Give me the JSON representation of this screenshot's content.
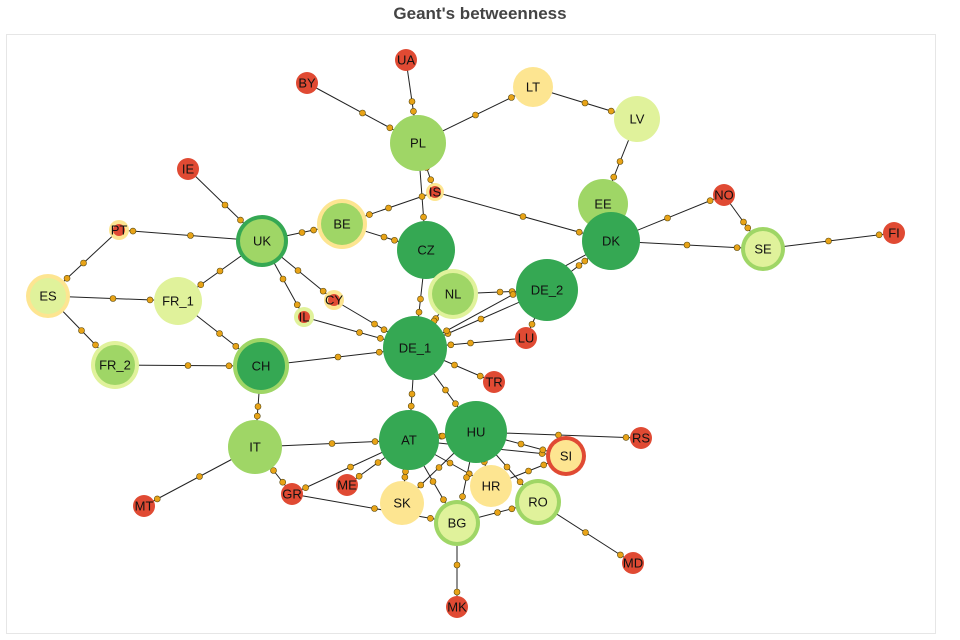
{
  "title": "Geant's betweenness",
  "colors": {
    "edge": "#222222",
    "edge_dot": "#e8a317",
    "red": "#e04a33",
    "yellow": "#fde591",
    "pale": "#e0f29b",
    "light_green": "#9fd666",
    "green": "#35a853"
  },
  "nodes": [
    {
      "id": "UA",
      "label": "UA",
      "fill": "red"
    },
    {
      "id": "BY",
      "label": "BY",
      "fill": "red"
    },
    {
      "id": "LT",
      "label": "LT",
      "fill": "yellow"
    },
    {
      "id": "LV",
      "label": "LV",
      "fill": "pale"
    },
    {
      "id": "PL",
      "label": "PL",
      "fill": "light_green"
    },
    {
      "id": "IE",
      "label": "IE",
      "fill": "red"
    },
    {
      "id": "IS",
      "label": "IS",
      "fill": "red",
      "ring": "yellow"
    },
    {
      "id": "EE",
      "label": "EE",
      "fill": "light_green"
    },
    {
      "id": "NO",
      "label": "NO",
      "fill": "red"
    },
    {
      "id": "FI",
      "label": "FI",
      "fill": "red"
    },
    {
      "id": "PT",
      "label": "PT",
      "fill": "red",
      "ring": "yellow"
    },
    {
      "id": "BE",
      "label": "BE",
      "fill": "light_green",
      "ring": "yellow"
    },
    {
      "id": "UK",
      "label": "UK",
      "fill": "light_green",
      "ring": "green"
    },
    {
      "id": "CZ",
      "label": "CZ",
      "fill": "green"
    },
    {
      "id": "DK",
      "label": "DK",
      "fill": "green"
    },
    {
      "id": "SE",
      "label": "SE",
      "fill": "pale",
      "ring": "light_green"
    },
    {
      "id": "ES",
      "label": "ES",
      "fill": "pale",
      "ring": "yellow"
    },
    {
      "id": "FR_1",
      "label": "FR_1",
      "fill": "pale"
    },
    {
      "id": "CY",
      "label": "CY",
      "fill": "red",
      "ring": "yellow"
    },
    {
      "id": "IL",
      "label": "IL",
      "fill": "red",
      "ring": "pale"
    },
    {
      "id": "NL",
      "label": "NL",
      "fill": "light_green",
      "ring": "pale"
    },
    {
      "id": "DE_2",
      "label": "DE_2",
      "fill": "green"
    },
    {
      "id": "LU",
      "label": "LU",
      "fill": "red"
    },
    {
      "id": "FR_2",
      "label": "FR_2",
      "fill": "light_green",
      "ring": "pale"
    },
    {
      "id": "CH",
      "label": "CH",
      "fill": "green",
      "ring": "light_green"
    },
    {
      "id": "DE_1",
      "label": "DE_1",
      "fill": "green"
    },
    {
      "id": "TR",
      "label": "TR",
      "fill": "red"
    },
    {
      "id": "IT",
      "label": "IT",
      "fill": "light_green"
    },
    {
      "id": "AT",
      "label": "AT",
      "fill": "green"
    },
    {
      "id": "HU",
      "label": "HU",
      "fill": "green"
    },
    {
      "id": "RS",
      "label": "RS",
      "fill": "red"
    },
    {
      "id": "SI",
      "label": "SI",
      "fill": "yellow",
      "ring": "red"
    },
    {
      "id": "MT",
      "label": "MT",
      "fill": "red"
    },
    {
      "id": "GR",
      "label": "GR",
      "fill": "red"
    },
    {
      "id": "ME",
      "label": "ME",
      "fill": "red"
    },
    {
      "id": "SK",
      "label": "SK",
      "fill": "yellow"
    },
    {
      "id": "HR",
      "label": "HR",
      "fill": "yellow"
    },
    {
      "id": "RO",
      "label": "RO",
      "fill": "pale",
      "ring": "light_green"
    },
    {
      "id": "BG",
      "label": "BG",
      "fill": "pale",
      "ring": "light_green"
    },
    {
      "id": "MD",
      "label": "MD",
      "fill": "red"
    },
    {
      "id": "MK",
      "label": "MK",
      "fill": "red"
    }
  ],
  "edges": [
    [
      "UA",
      "PL"
    ],
    [
      "BY",
      "PL"
    ],
    [
      "PL",
      "LT"
    ],
    [
      "LT",
      "LV"
    ],
    [
      "LV",
      "EE"
    ],
    [
      "PL",
      "CZ"
    ],
    [
      "PL",
      "IS"
    ],
    [
      "IS",
      "DK"
    ],
    [
      "IS",
      "BE"
    ],
    [
      "IE",
      "UK"
    ],
    [
      "UK",
      "PT"
    ],
    [
      "PT",
      "ES"
    ],
    [
      "ES",
      "FR_1"
    ],
    [
      "ES",
      "FR_2"
    ],
    [
      "UK",
      "FR_1"
    ],
    [
      "UK",
      "BE"
    ],
    [
      "UK",
      "CY"
    ],
    [
      "UK",
      "IL"
    ],
    [
      "BE",
      "CZ"
    ],
    [
      "FR_1",
      "CH"
    ],
    [
      "FR_2",
      "CH"
    ],
    [
      "CH",
      "DE_1"
    ],
    [
      "CH",
      "IT"
    ],
    [
      "IT",
      "AT"
    ],
    [
      "IT",
      "MT"
    ],
    [
      "IT",
      "GR"
    ],
    [
      "CZ",
      "DE_1"
    ],
    [
      "CY",
      "DE_1"
    ],
    [
      "IL",
      "DE_1"
    ],
    [
      "NL",
      "DE_1"
    ],
    [
      "NL",
      "DE_2"
    ],
    [
      "DE_2",
      "DE_1"
    ],
    [
      "DE_2",
      "DK"
    ],
    [
      "EE",
      "DK"
    ],
    [
      "DK",
      "SE"
    ],
    [
      "DK",
      "NO"
    ],
    [
      "NO",
      "SE"
    ],
    [
      "SE",
      "FI"
    ],
    [
      "DK",
      "DE_1"
    ],
    [
      "DE_2",
      "LU"
    ],
    [
      "LU",
      "DE_1"
    ],
    [
      "DE_1",
      "TR"
    ],
    [
      "DE_1",
      "AT"
    ],
    [
      "DE_1",
      "HU"
    ],
    [
      "AT",
      "HU"
    ],
    [
      "AT",
      "ME"
    ],
    [
      "AT",
      "SK"
    ],
    [
      "AT",
      "SI"
    ],
    [
      "AT",
      "HR"
    ],
    [
      "AT",
      "BG"
    ],
    [
      "AT",
      "GR"
    ],
    [
      "HU",
      "RS"
    ],
    [
      "HU",
      "SK"
    ],
    [
      "HU",
      "HR"
    ],
    [
      "HU",
      "BG"
    ],
    [
      "HU",
      "RO"
    ],
    [
      "HU",
      "SI"
    ],
    [
      "HR",
      "SI"
    ],
    [
      "BG",
      "RO"
    ],
    [
      "BG",
      "MK"
    ],
    [
      "RO",
      "MD"
    ],
    [
      "GR",
      "BG"
    ]
  ]
}
